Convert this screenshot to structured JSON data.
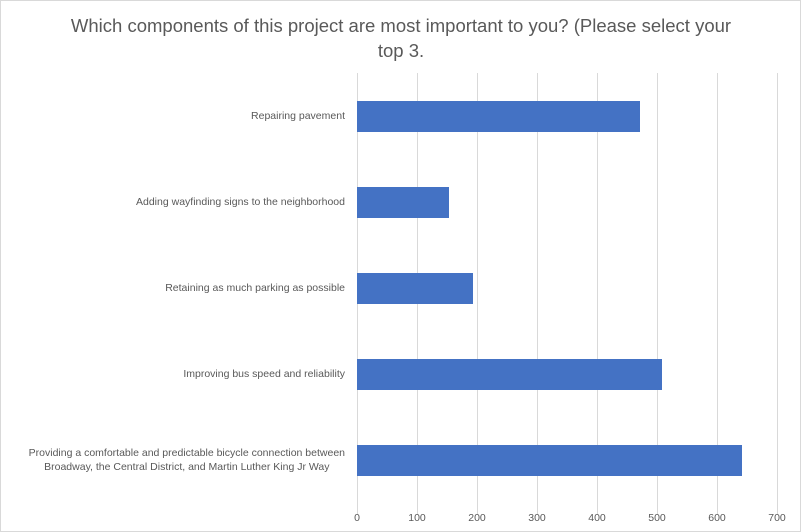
{
  "chart_data": {
    "type": "bar",
    "orientation": "horizontal",
    "title": "Which components of this project are most important to you? (Please select your top 3.)",
    "title_lines": [
      "Which components of this project are most important to you? (Please select your",
      "top 3."
    ],
    "categories": [
      "Repairing pavement",
      "Adding wayfinding signs to the neighborhood",
      "Retaining as much parking as possible",
      "Improving bus speed and reliability",
      "Providing a comfortable and predictable bicycle connection between Broadway, the Central District, and Martin Luther King Jr Way"
    ],
    "category_lines": [
      [
        "Repairing pavement"
      ],
      [
        "Adding wayfinding signs to the neighborhood"
      ],
      [
        "Retaining as much parking as possible"
      ],
      [
        "Improving bus speed and reliability"
      ],
      [
        "Providing a comfortable and predictable bicycle connection between",
        "Broadway, the Central District, and Martin Luther King Jr Way"
      ]
    ],
    "values": [
      471,
      154,
      193,
      508,
      642
    ],
    "xlabel": "",
    "ylabel": "",
    "xlim": [
      0,
      700
    ],
    "xticks": [
      "0",
      "100",
      "200",
      "300",
      "400",
      "500",
      "600",
      "700"
    ],
    "grid": true,
    "legend": null,
    "bar_color": "#4472c4",
    "grid_color": "#d9d9d9",
    "text_color": "#595959"
  }
}
